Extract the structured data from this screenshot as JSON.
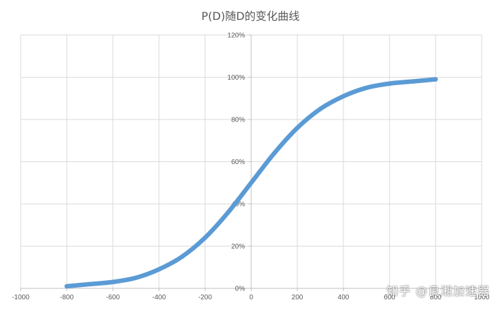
{
  "chart_data": {
    "type": "line",
    "title": "P(D)随D的变化曲线",
    "xlabel": "",
    "ylabel": "",
    "xlim": [
      -1000,
      1000
    ],
    "ylim": [
      0,
      120
    ],
    "x_ticks": [
      -1000,
      -800,
      -600,
      -400,
      -200,
      0,
      200,
      400,
      600,
      800,
      1000
    ],
    "y_ticks": [
      0,
      20,
      40,
      60,
      80,
      100,
      120
    ],
    "y_tick_labels": [
      "0%",
      "20%",
      "40%",
      "60%",
      "80%",
      "100%",
      "120%"
    ],
    "grid": true,
    "legend": "none",
    "series": [
      {
        "color": "#5b9bd5",
        "x": [
          -800,
          -700,
          -600,
          -500,
          -400,
          -300,
          -200,
          -100,
          0,
          100,
          200,
          300,
          400,
          500,
          600,
          700,
          800
        ],
        "y": [
          1,
          2,
          3,
          5,
          9,
          15,
          24,
          36,
          50,
          64,
          76,
          85,
          91,
          95,
          97,
          98,
          99
        ]
      }
    ]
  },
  "watermark": {
    "text": "知乎 @良湘加速器"
  }
}
